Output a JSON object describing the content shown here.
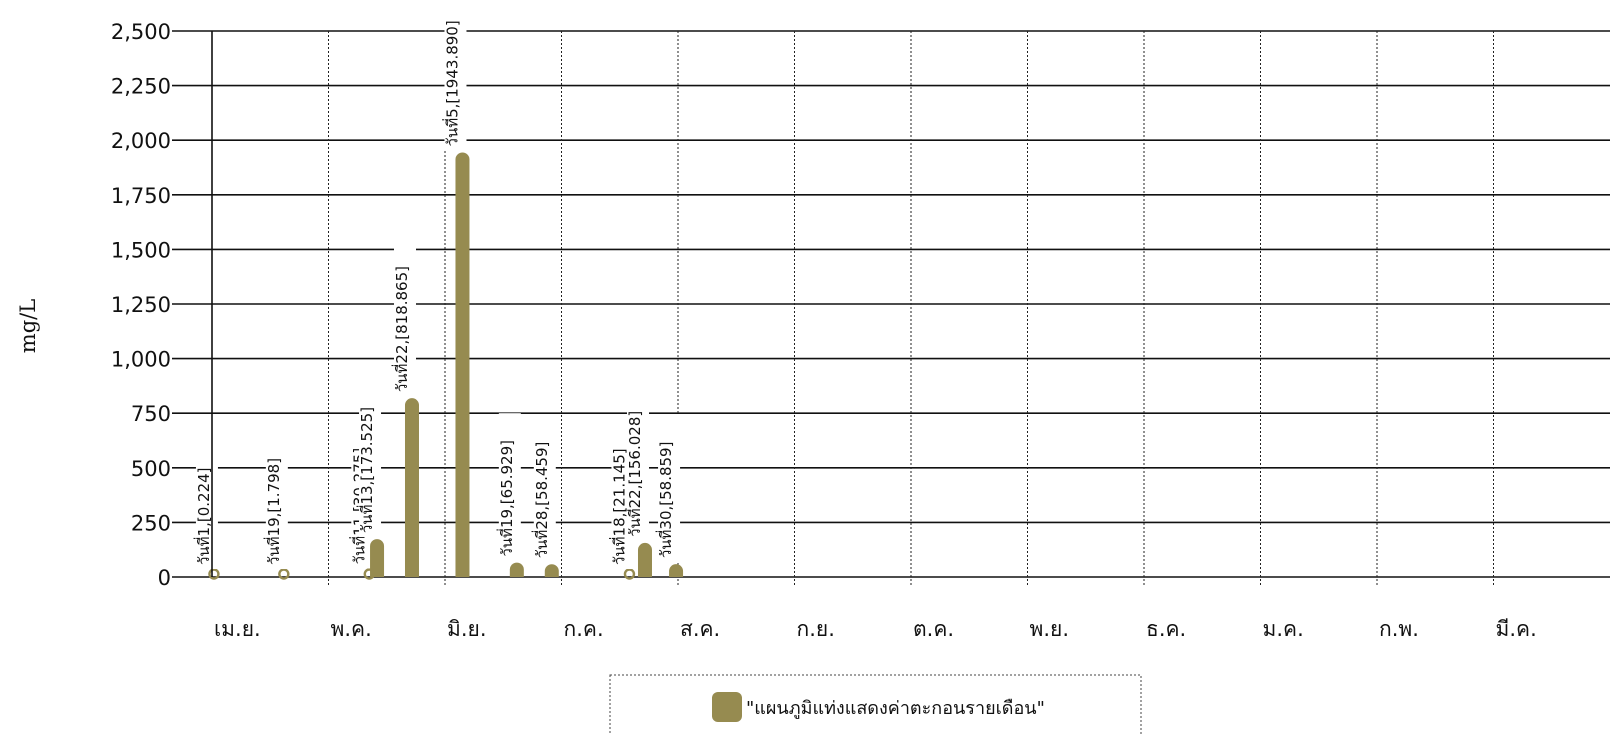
{
  "chart_data": {
    "type": "bar",
    "title": "",
    "xlabel": "",
    "ylabel": "mg/L",
    "ylim": [
      0,
      2500
    ],
    "yticks": [
      0,
      250,
      500,
      750,
      1000,
      1250,
      1500,
      1750,
      2000,
      2250,
      2500
    ],
    "ytick_labels": [
      "0",
      "250",
      "500",
      "750",
      "1,000",
      "1,250",
      "1,500",
      "1,750",
      "2,000",
      "2,250",
      "2,500"
    ],
    "categories": [
      "เม.ย.",
      "พ.ค.",
      "มิ.ย.",
      "ก.ค.",
      "ส.ค.",
      "ก.ย.",
      "ต.ค.",
      "พ.ย.",
      "ธ.ค.",
      "ม.ค.",
      "ก.พ.",
      "มี.ค."
    ],
    "grid": true,
    "legend_position": "bottom-center",
    "bar_color": "#968b50",
    "series": [
      {
        "name": "\"แผนภูมิแท่งแสดงค่าตะกอนรายเดือน\"",
        "points": [
          {
            "month": 0,
            "day": 1,
            "value": 0.224,
            "label": "วันที่1,[0.224]"
          },
          {
            "month": 0,
            "day": 19,
            "value": 1.798,
            "label": "วันที่19,[1.798]"
          },
          {
            "month": 1,
            "day": 11,
            "value": 30.275,
            "label": "วันที่11,[30.275]"
          },
          {
            "month": 1,
            "day": 13,
            "value": 173.525,
            "label": "วันที่13,[173.525]"
          },
          {
            "month": 1,
            "day": 22,
            "value": 818.865,
            "label": "วันที่22,[818.865]"
          },
          {
            "month": 2,
            "day": 5,
            "value": 1943.89,
            "label": "วันที่5,[1943.890]"
          },
          {
            "month": 2,
            "day": 19,
            "value": 65.929,
            "label": "วันที่19,[65.929]"
          },
          {
            "month": 2,
            "day": 28,
            "value": 58.459,
            "label": "วันที่28,[58.459]"
          },
          {
            "month": 3,
            "day": 18,
            "value": 21.145,
            "label": "วันที่18,[21.145]"
          },
          {
            "month": 3,
            "day": 22,
            "value": 156.028,
            "label": "วันที่22,[156.028]"
          },
          {
            "month": 3,
            "day": 30,
            "value": 58.859,
            "label": "วันที่30,[58.859]"
          }
        ]
      }
    ]
  }
}
